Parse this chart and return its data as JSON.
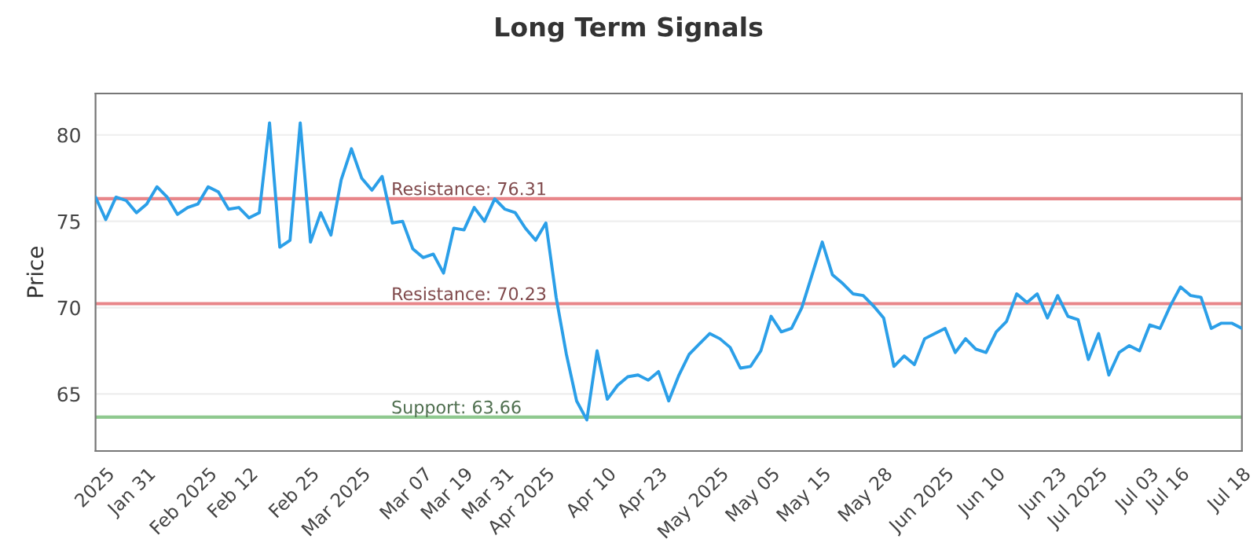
{
  "chart_data": {
    "type": "line",
    "title": "Long Term Signals",
    "ylabel": "Price",
    "ylim": [
      61.7,
      82.4
    ],
    "yticks": [
      65,
      70,
      75,
      80
    ],
    "categories": [
      null,
      "2025",
      null,
      null,
      null,
      "Jan 31",
      null,
      null,
      null,
      null,
      null,
      "Feb 2025",
      null,
      null,
      null,
      "Feb 12",
      null,
      null,
      null,
      null,
      null,
      "Feb 25",
      null,
      null,
      null,
      null,
      "Mar 2025",
      null,
      null,
      null,
      null,
      null,
      "Mar 07",
      null,
      null,
      null,
      "Mar 19",
      null,
      null,
      null,
      "Mar 31",
      null,
      null,
      null,
      "Apr 2025",
      null,
      null,
      null,
      null,
      null,
      "Apr 10",
      null,
      null,
      null,
      null,
      "Apr 23",
      null,
      null,
      null,
      null,
      null,
      "May 2025",
      null,
      null,
      null,
      null,
      "May 05",
      null,
      null,
      null,
      null,
      "May 15",
      null,
      null,
      null,
      null,
      null,
      "May 28",
      null,
      null,
      null,
      null,
      null,
      "Jun 2025",
      null,
      null,
      null,
      null,
      "Jun 10",
      null,
      null,
      null,
      null,
      null,
      "Jun 23",
      null,
      null,
      null,
      "Jul 2025",
      null,
      null,
      null,
      null,
      "Jul 03",
      null,
      null,
      "Jul 16",
      null,
      null,
      null,
      null,
      null,
      "Jul 18"
    ],
    "grid": "y",
    "legend": false,
    "marker": "none",
    "line_style": "solid",
    "series": [
      {
        "color": "#2b9fe8",
        "values": [
          76.4,
          75.1,
          76.4,
          76.2,
          75.5,
          76.0,
          77.0,
          76.4,
          75.4,
          75.8,
          76.0,
          77.0,
          76.7,
          75.7,
          75.8,
          75.2,
          75.5,
          80.7,
          73.5,
          73.9,
          80.7,
          73.8,
          75.5,
          74.2,
          77.4,
          79.2,
          77.5,
          76.8,
          77.6,
          74.9,
          75.0,
          73.4,
          72.9,
          73.1,
          72.0,
          74.6,
          74.5,
          75.8,
          75.0,
          76.3,
          75.7,
          75.5,
          74.6,
          73.9,
          74.9,
          70.6,
          67.3,
          64.6,
          63.5,
          67.5,
          64.7,
          65.5,
          66.0,
          66.1,
          65.8,
          66.3,
          64.6,
          66.1,
          67.3,
          67.9,
          68.5,
          68.2,
          67.7,
          66.5,
          66.6,
          67.5,
          69.5,
          68.6,
          68.8,
          70.0,
          71.9,
          73.8,
          71.9,
          71.4,
          70.8,
          70.7,
          70.1,
          69.4,
          66.6,
          67.2,
          66.7,
          68.2,
          68.5,
          68.8,
          67.4,
          68.2,
          67.6,
          67.4,
          68.6,
          69.2,
          70.8,
          70.3,
          70.8,
          69.4,
          70.7,
          69.5,
          69.3,
          67.0,
          68.5,
          66.1,
          67.4,
          67.8,
          67.5,
          69.0,
          68.8,
          70.1,
          71.2,
          70.7,
          70.6,
          68.8,
          69.1,
          69.1,
          68.8
        ]
      }
    ],
    "ref_lines": [
      {
        "axis": "y",
        "value": 76.31,
        "label": "Resistance: 76.31",
        "color": "#e8868a"
      },
      {
        "axis": "y",
        "value": 70.23,
        "label": "Resistance: 70.23",
        "color": "#e8868a"
      },
      {
        "axis": "y",
        "value": 63.66,
        "label": "Support: 63.66",
        "color": "#8fc98f"
      }
    ]
  }
}
